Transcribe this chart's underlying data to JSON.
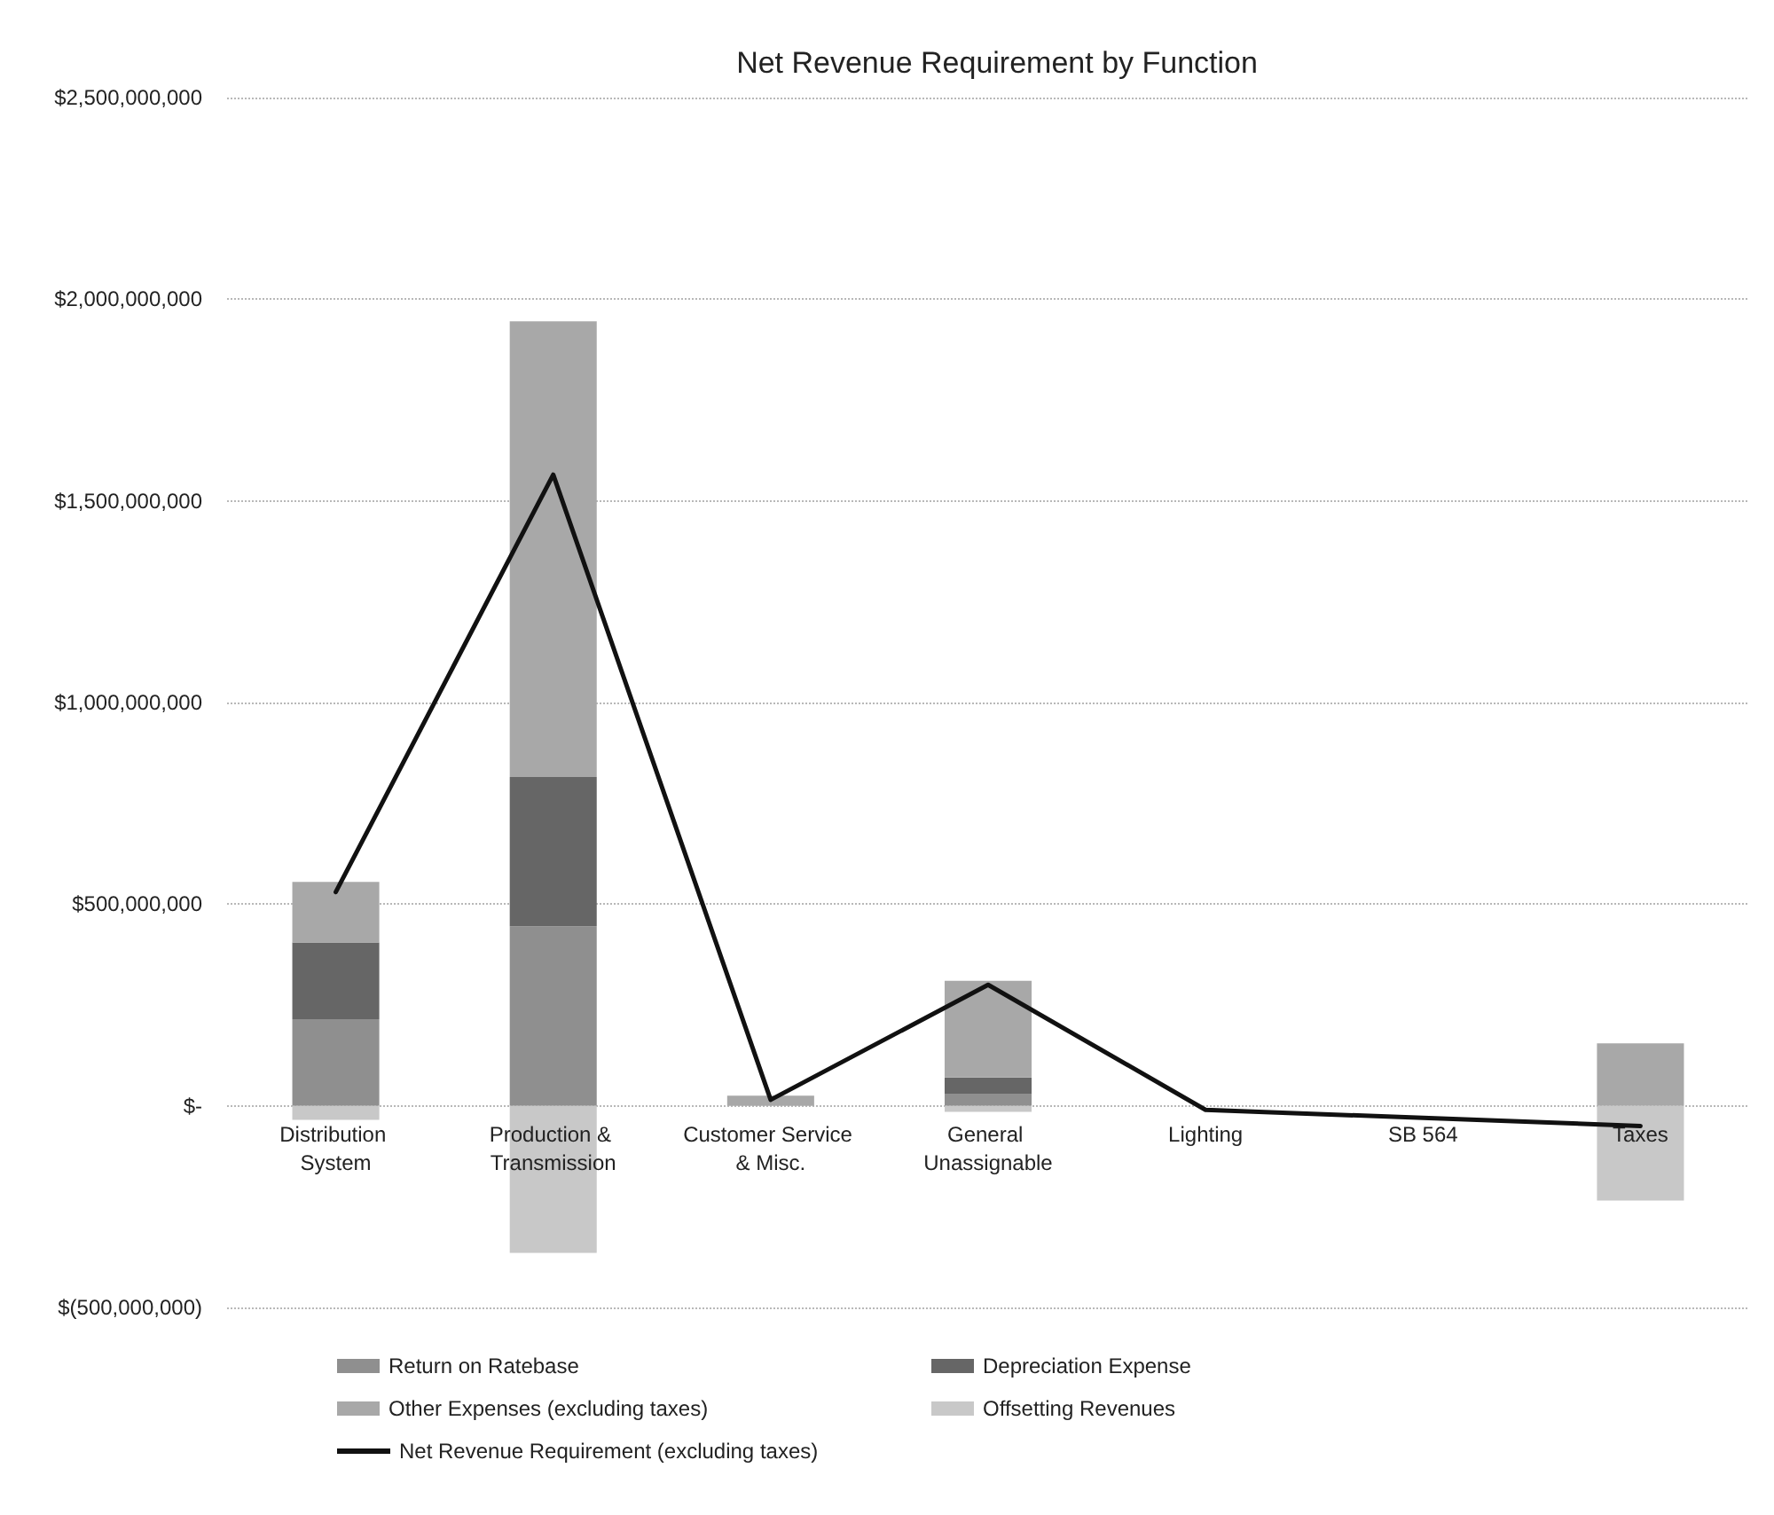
{
  "chart_data": {
    "type": "bar",
    "title": "Net Revenue Requirement by Function",
    "categories": [
      "Distribution System",
      "Production & Transmission",
      "Customer Service & Misc.",
      "General Unassignable",
      "Lighting",
      "SB 564",
      "Taxes"
    ],
    "series": [
      {
        "name": "Return on Ratebase",
        "color": "#8f8f8f",
        "values": [
          215000000,
          445000000,
          null,
          30000000,
          null,
          null,
          null
        ]
      },
      {
        "name": "Depreciation Expense",
        "color": "#666666",
        "values": [
          190000000,
          370000000,
          null,
          40000000,
          null,
          null,
          null
        ]
      },
      {
        "name": "Other Expenses (excluding taxes)",
        "color": "#a8a8a8",
        "values": [
          150000000,
          1130000000,
          25000000,
          240000000,
          null,
          null,
          155000000
        ]
      },
      {
        "name": "Offsetting Revenues",
        "color": "#c8c8c8",
        "values": [
          -35000000,
          -365000000,
          null,
          -15000000,
          null,
          null,
          -235000000
        ]
      },
      {
        "name": "Net Revenue Requirement (excluding taxes)",
        "type": "line",
        "color": "#111111",
        "values": [
          530000000,
          1565000000,
          15000000,
          300000000,
          -10000000,
          -30000000,
          -50000000
        ]
      }
    ],
    "stacked": true,
    "ylim": [
      -500000000,
      2500000000
    ],
    "yticks": [
      {
        "value": -500000000,
        "label": "$(500,000,000)"
      },
      {
        "value": 0,
        "label": "$-"
      },
      {
        "value": 500000000,
        "label": "$500,000,000"
      },
      {
        "value": 1000000000,
        "label": "$1,000,000,000"
      },
      {
        "value": 1500000000,
        "label": "$1,500,000,000"
      },
      {
        "value": 2000000000,
        "label": "$2,000,000,000"
      },
      {
        "value": 2500000000,
        "label": "$2,500,000,000"
      }
    ],
    "grid": "y",
    "legend": "bottom",
    "marker": "none",
    "line_style": "solid"
  }
}
